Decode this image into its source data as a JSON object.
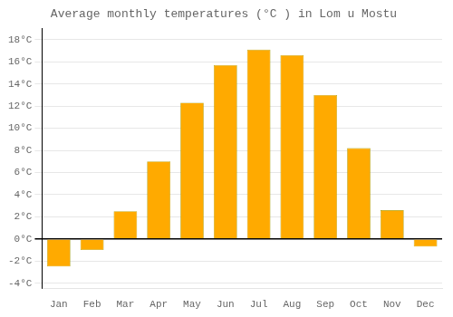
{
  "chart_data": {
    "type": "bar",
    "title": "Average monthly temperatures (°C ) in Lom u Mostu",
    "categories": [
      "Jan",
      "Feb",
      "Mar",
      "Apr",
      "May",
      "Jun",
      "Jul",
      "Aug",
      "Sep",
      "Oct",
      "Nov",
      "Dec"
    ],
    "values": [
      -2.5,
      -1.0,
      2.5,
      7.0,
      12.3,
      15.7,
      17.1,
      16.6,
      13.0,
      8.2,
      2.6,
      -0.7
    ],
    "color": "#FFAA00",
    "ylim": [
      -4.5,
      19
    ],
    "yticks": [
      {
        "value": -4,
        "label": "-4°C"
      },
      {
        "value": -2,
        "label": "-2°C"
      },
      {
        "value": 0,
        "label": "0°C"
      },
      {
        "value": 2,
        "label": "2°C"
      },
      {
        "value": 4,
        "label": "4°C"
      },
      {
        "value": 6,
        "label": "6°C"
      },
      {
        "value": 8,
        "label": "8°C"
      },
      {
        "value": 10,
        "label": "10°C"
      },
      {
        "value": 12,
        "label": "12°C"
      },
      {
        "value": 14,
        "label": "14°C"
      },
      {
        "value": 16,
        "label": "16°C"
      },
      {
        "value": 18,
        "label": "18°C"
      }
    ],
    "grid": true
  }
}
